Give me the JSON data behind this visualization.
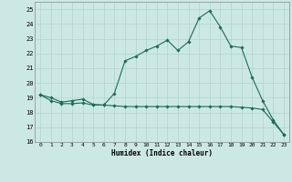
{
  "xlabel": "Humidex (Indice chaleur)",
  "bg_color": "#cce8e4",
  "grid_color": "#b0d4cc",
  "line_color": "#1a6b5a",
  "xlim": [
    -0.5,
    23.5
  ],
  "ylim": [
    16,
    25.5
  ],
  "xticks": [
    0,
    1,
    2,
    3,
    4,
    5,
    6,
    7,
    8,
    9,
    10,
    11,
    12,
    13,
    14,
    15,
    16,
    17,
    18,
    19,
    20,
    21,
    22,
    23
  ],
  "yticks": [
    16,
    17,
    18,
    19,
    20,
    21,
    22,
    23,
    24,
    25
  ],
  "humidex": [
    19.2,
    19.0,
    18.7,
    18.8,
    18.9,
    18.55,
    18.5,
    19.3,
    21.5,
    21.8,
    22.2,
    22.5,
    22.9,
    22.2,
    22.8,
    24.4,
    24.9,
    23.8,
    22.5,
    22.4,
    20.4,
    18.8,
    17.5,
    16.5
  ],
  "trend": [
    19.2,
    18.8,
    18.6,
    18.6,
    18.65,
    18.5,
    18.5,
    18.45,
    18.4,
    18.4,
    18.4,
    18.4,
    18.4,
    18.4,
    18.4,
    18.4,
    18.4,
    18.4,
    18.4,
    18.35,
    18.3,
    18.2,
    17.35,
    16.5
  ]
}
